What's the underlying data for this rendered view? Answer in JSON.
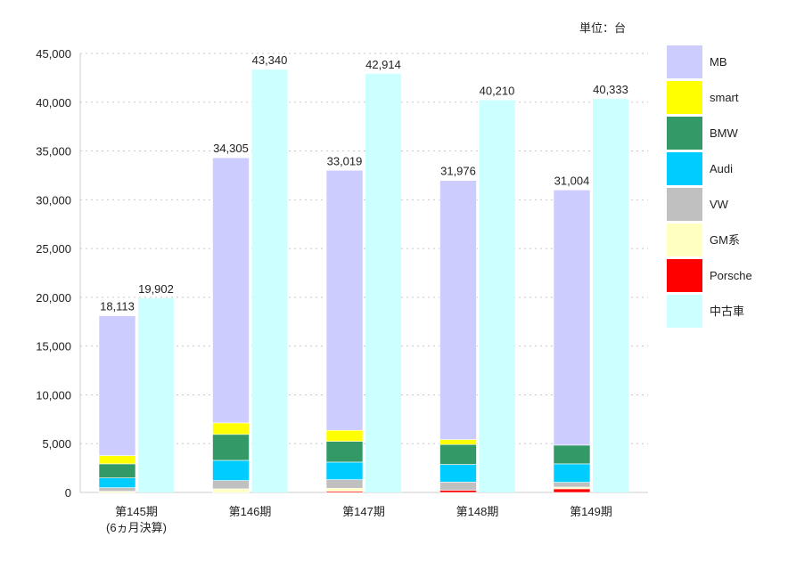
{
  "chart_data": {
    "type": "bar",
    "stacked": true,
    "unit_label": "単位：台",
    "ylim": [
      0,
      45000
    ],
    "yticks": [
      0,
      5000,
      10000,
      15000,
      20000,
      25000,
      30000,
      35000,
      40000,
      45000
    ],
    "ytick_labels": [
      "0",
      "5,000",
      "10,000",
      "15,000",
      "20,000",
      "25,000",
      "30,000",
      "35,000",
      "40,000",
      "45,000"
    ],
    "grid": true,
    "legend_position": "right",
    "categories": [
      "第145期",
      "第146期",
      "第147期",
      "第148期",
      "第149期"
    ],
    "category_sublabels": [
      "(6ヵ月決算)",
      "",
      "",
      "",
      ""
    ],
    "new_car_series": [
      {
        "name": "Porsche",
        "color": "#ff0000",
        "values": [
          0,
          0,
          120,
          210,
          370
        ]
      },
      {
        "name": "GM系",
        "color": "#ffffbf",
        "values": [
          120,
          370,
          310,
          0,
          180
        ]
      },
      {
        "name": "VW",
        "color": "#c0c0c0",
        "values": [
          370,
          850,
          880,
          860,
          490
        ]
      },
      {
        "name": "Audi",
        "color": "#00ccff",
        "values": [
          1000,
          2070,
          1800,
          1800,
          1890
        ]
      },
      {
        "name": "BMW",
        "color": "#339966",
        "values": [
          1440,
          2660,
          2130,
          2040,
          1920
        ]
      },
      {
        "name": "smart",
        "color": "#ffff00",
        "values": [
          850,
          1180,
          1130,
          520,
          0
        ]
      },
      {
        "name": "MB",
        "color": "#ccccff",
        "values": [
          14333,
          27175,
          26649,
          26546,
          26154
        ]
      }
    ],
    "new_car_totals": [
      18113,
      34305,
      33019,
      31976,
      31004
    ],
    "new_car_total_labels": [
      "18,113",
      "34,305",
      "33,019",
      "31,976",
      "31,004"
    ],
    "used_car_series": {
      "name": "中古車",
      "color": "#ccffff",
      "values": [
        19902,
        43340,
        42914,
        40210,
        40333
      ]
    },
    "used_car_labels": [
      "19,902",
      "43,340",
      "42,914",
      "40,210",
      "40,333"
    ],
    "legend": [
      "MB",
      "smart",
      "BMW",
      "Audi",
      "VW",
      "GM系",
      "Porsche",
      "中古車"
    ]
  }
}
